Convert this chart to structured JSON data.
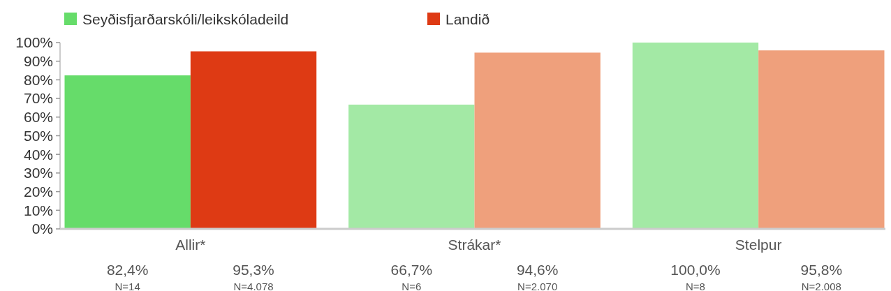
{
  "chart_data": {
    "type": "bar",
    "categories": [
      "Allir*",
      "Strákar*",
      "Stelpur"
    ],
    "series": [
      {
        "name": "Seyðisfjarðarskóli/leikskóladeild",
        "color": "#66dc6a",
        "colors": [
          "#66dc6a",
          "#a3e9a5",
          "#a3e9a5"
        ],
        "values": [
          82.4,
          66.7,
          100
        ],
        "value_labels": [
          "82,4%",
          "66,7%",
          "100,0%"
        ]
      },
      {
        "name": "Landið",
        "color": "#de3a14",
        "colors": [
          "#de3a14",
          "#efa07c",
          "#efa07c"
        ],
        "values": [
          95.3,
          94.6,
          95.8
        ],
        "value_labels": [
          "95,3%",
          "94,6%",
          "95,8%"
        ]
      }
    ],
    "ylim": [
      0,
      100
    ],
    "yticks": [
      {
        "value": 0,
        "label": "0%"
      },
      {
        "value": 10,
        "label": "10%"
      },
      {
        "value": 20,
        "label": "20%"
      },
      {
        "value": 30,
        "label": "30%"
      },
      {
        "value": 40,
        "label": "40%"
      },
      {
        "value": 50,
        "label": "50%"
      },
      {
        "value": 60,
        "label": "60%"
      },
      {
        "value": 70,
        "label": "70%"
      },
      {
        "value": 80,
        "label": "80%"
      },
      {
        "value": 90,
        "label": "90%"
      },
      {
        "value": 100,
        "label": "100%"
      }
    ],
    "legend": "top",
    "annotations": [
      "N=14",
      "N=4.078",
      "N=6",
      "N=2.070",
      "N=8",
      "N=2.008"
    ]
  }
}
